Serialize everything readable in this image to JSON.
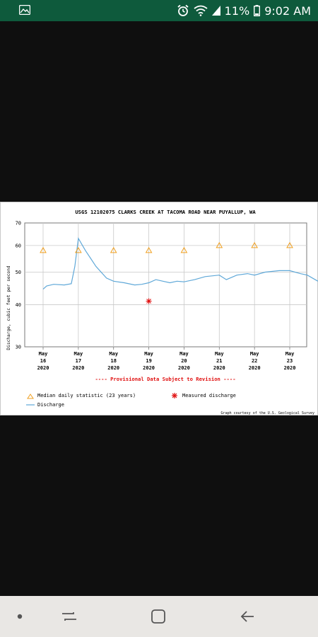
{
  "status_bar": {
    "battery_percent": "11%",
    "time": "9:02 AM",
    "icons": [
      "gallery-icon",
      "alarm-icon",
      "wifi-icon",
      "signal-icon",
      "battery-icon"
    ]
  },
  "colors": {
    "status_bar": "#0e5a3c",
    "discharge_line": "#5fa8d8",
    "median_marker": "#f0a020",
    "measured_marker": "#e01010",
    "provisional_text": "#e01010",
    "nav_bar": "#e9e7e4"
  },
  "graph": {
    "credit": "Graph courtesy of the U.S. Geological Survey",
    "provisional_note": "---- Provisional Data Subject to Revision ----",
    "legend": {
      "median": "Median daily statistic (23 years)",
      "measured": "Measured discharge",
      "discharge": "Discharge"
    }
  },
  "chart_data": {
    "type": "line",
    "title": "USGS 12102075 CLARKS CREEK AT TACOMA ROAD NEAR PUYALLUP, WA",
    "ylabel": "Discharge, cubic feet per second",
    "xlabel": "",
    "y_scale": "log",
    "ylim": [
      30,
      70
    ],
    "y_ticks": [
      30,
      40,
      50,
      60,
      70
    ],
    "grid": true,
    "legend_position": "bottom-left",
    "x_tick_labels": [
      [
        "May",
        "16",
        "2020"
      ],
      [
        "May",
        "17",
        "2020"
      ],
      [
        "May",
        "18",
        "2020"
      ],
      [
        "May",
        "19",
        "2020"
      ],
      [
        "May",
        "20",
        "2020"
      ],
      [
        "May",
        "21",
        "2020"
      ],
      [
        "May",
        "22",
        "2020"
      ],
      [
        "May",
        "23",
        "2020"
      ]
    ],
    "series": [
      {
        "name": "Discharge",
        "x": [
          0.0,
          0.1,
          0.3,
          0.6,
          0.8,
          0.9,
          1.0,
          1.2,
          1.5,
          1.8,
          2.0,
          2.3,
          2.6,
          2.8,
          3.0,
          3.2,
          3.4,
          3.6,
          3.8,
          4.0,
          4.3,
          4.6,
          5.0,
          5.2,
          5.5,
          5.8,
          6.0,
          6.3,
          6.7,
          7.0,
          7.3,
          7.5,
          7.8
        ],
        "y": [
          44.5,
          45.5,
          46.0,
          45.8,
          46.2,
          52.0,
          63.0,
          58.0,
          52.0,
          48.0,
          47.0,
          46.5,
          45.8,
          46.0,
          46.5,
          47.5,
          47.0,
          46.5,
          47.0,
          46.8,
          47.5,
          48.5,
          49.0,
          47.5,
          49.0,
          49.5,
          49.0,
          50.0,
          50.5,
          50.5,
          49.5,
          49.0,
          47.0
        ]
      },
      {
        "name": "Median daily statistic (23 years)",
        "x": [
          0.0,
          1.0,
          2.0,
          3.0,
          4.0,
          5.0,
          6.0,
          7.0
        ],
        "y": [
          58,
          58,
          58,
          58,
          58,
          60,
          60,
          60
        ]
      },
      {
        "name": "Measured discharge",
        "x": [
          3.0
        ],
        "y": [
          41
        ]
      }
    ]
  }
}
